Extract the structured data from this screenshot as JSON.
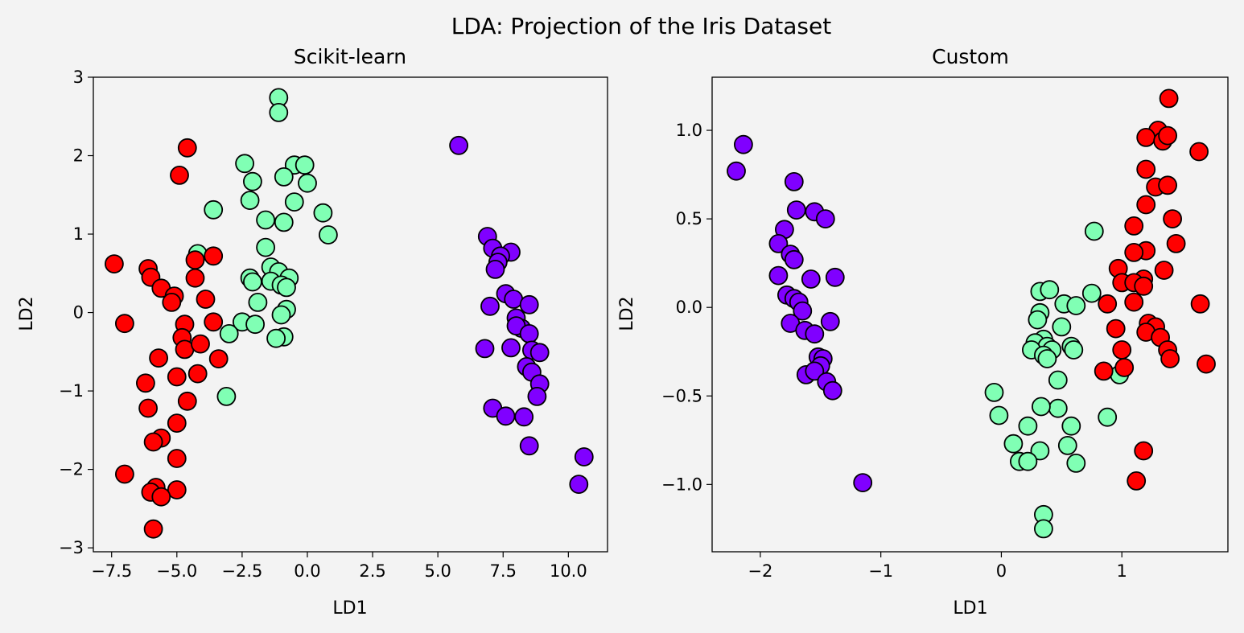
{
  "figure": {
    "suptitle": "LDA: Projection of the Iris Dataset",
    "background": "#f3f3f3",
    "marker_edge": "#000000"
  },
  "class_colors": [
    "#8000ff",
    "#80ffb4",
    "#ff0000"
  ],
  "chart_data": [
    {
      "type": "scatter",
      "title": "Scikit-learn",
      "xlabel": "LD1",
      "ylabel": "LD2",
      "xlim": [
        -8.2,
        11.5
      ],
      "ylim": [
        -3.05,
        3.0
      ],
      "xticks": [
        -7.5,
        -5.0,
        -2.5,
        0.0,
        2.5,
        5.0,
        7.5,
        10.0
      ],
      "xtick_labels": [
        "−7.5",
        "−5.0",
        "−2.5",
        "0.0",
        "2.5",
        "5.0",
        "7.5",
        "10.0"
      ],
      "yticks": [
        -3,
        -2,
        -1,
        0,
        1,
        2,
        3
      ],
      "ytick_labels": [
        "−3",
        "−2",
        "−1",
        "0",
        "1",
        "2",
        "3"
      ],
      "grid": false,
      "series": [
        {
          "class": 0,
          "points": [
            [
              5.8,
              2.13
            ],
            [
              6.9,
              0.97
            ],
            [
              7.1,
              0.82
            ],
            [
              7.8,
              0.77
            ],
            [
              7.4,
              0.72
            ],
            [
              7.3,
              0.64
            ],
            [
              7.2,
              0.55
            ],
            [
              7.6,
              0.24
            ],
            [
              7.9,
              0.17
            ],
            [
              8.5,
              0.1
            ],
            [
              7.0,
              0.08
            ],
            [
              8.0,
              -0.07
            ],
            [
              8.2,
              -0.2
            ],
            [
              8.0,
              -0.17
            ],
            [
              8.5,
              -0.27
            ],
            [
              6.8,
              -0.46
            ],
            [
              7.8,
              -0.45
            ],
            [
              8.6,
              -0.48
            ],
            [
              8.9,
              -0.51
            ],
            [
              8.4,
              -0.69
            ],
            [
              8.6,
              -0.76
            ],
            [
              8.9,
              -0.91
            ],
            [
              8.8,
              -1.07
            ],
            [
              7.1,
              -1.22
            ],
            [
              7.6,
              -1.32
            ],
            [
              8.3,
              -1.33
            ],
            [
              8.5,
              -1.7
            ],
            [
              10.6,
              -1.84
            ],
            [
              10.4,
              -2.19
            ]
          ]
        },
        {
          "class": 1,
          "points": [
            [
              -1.1,
              2.74
            ],
            [
              -1.1,
              2.55
            ],
            [
              -2.4,
              1.9
            ],
            [
              -0.5,
              1.88
            ],
            [
              -0.1,
              1.88
            ],
            [
              -2.1,
              1.67
            ],
            [
              -0.9,
              1.73
            ],
            [
              0.0,
              1.65
            ],
            [
              -2.2,
              1.43
            ],
            [
              -0.5,
              1.41
            ],
            [
              -3.6,
              1.31
            ],
            [
              -1.6,
              1.18
            ],
            [
              -0.9,
              1.15
            ],
            [
              0.6,
              1.27
            ],
            [
              0.8,
              0.99
            ],
            [
              -1.6,
              0.83
            ],
            [
              -4.2,
              0.75
            ],
            [
              -1.4,
              0.58
            ],
            [
              -1.1,
              0.52
            ],
            [
              -2.2,
              0.44
            ],
            [
              -2.1,
              0.39
            ],
            [
              -1.4,
              0.4
            ],
            [
              -0.7,
              0.44
            ],
            [
              -1.0,
              0.35
            ],
            [
              -0.8,
              0.32
            ],
            [
              -1.9,
              0.13
            ],
            [
              -2.5,
              -0.12
            ],
            [
              -2.0,
              -0.15
            ],
            [
              -0.8,
              0.04
            ],
            [
              -1.0,
              -0.03
            ],
            [
              -3.0,
              -0.27
            ],
            [
              -0.9,
              -0.31
            ],
            [
              -1.2,
              -0.33
            ],
            [
              -3.1,
              -1.07
            ]
          ]
        },
        {
          "class": 2,
          "points": [
            [
              -7.4,
              0.62
            ],
            [
              -4.6,
              2.1
            ],
            [
              -4.9,
              1.75
            ],
            [
              -7.0,
              -0.14
            ],
            [
              -6.1,
              0.56
            ],
            [
              -6.0,
              0.45
            ],
            [
              -5.6,
              0.31
            ],
            [
              -5.1,
              0.21
            ],
            [
              -5.2,
              0.13
            ],
            [
              -4.3,
              0.67
            ],
            [
              -4.3,
              0.44
            ],
            [
              -3.6,
              0.72
            ],
            [
              -3.9,
              0.17
            ],
            [
              -4.7,
              -0.15
            ],
            [
              -4.8,
              -0.32
            ],
            [
              -4.7,
              -0.47
            ],
            [
              -4.1,
              -0.4
            ],
            [
              -3.6,
              -0.12
            ],
            [
              -5.7,
              -0.58
            ],
            [
              -3.4,
              -0.59
            ],
            [
              -4.2,
              -0.78
            ],
            [
              -5.0,
              -0.82
            ],
            [
              -6.2,
              -0.9
            ],
            [
              -4.6,
              -1.13
            ],
            [
              -6.1,
              -1.22
            ],
            [
              -5.0,
              -1.41
            ],
            [
              -5.6,
              -1.6
            ],
            [
              -5.9,
              -1.65
            ],
            [
              -5.0,
              -1.86
            ],
            [
              -7.0,
              -2.06
            ],
            [
              -5.8,
              -2.23
            ],
            [
              -5.0,
              -2.26
            ],
            [
              -6.0,
              -2.29
            ],
            [
              -5.6,
              -2.35
            ],
            [
              -5.9,
              -2.76
            ]
          ]
        }
      ]
    },
    {
      "type": "scatter",
      "title": "Custom",
      "xlabel": "LD1",
      "ylabel": "LD2",
      "xlim": [
        -2.4,
        1.88
      ],
      "ylim": [
        -1.38,
        1.3
      ],
      "xticks": [
        -2,
        -1,
        0,
        1
      ],
      "xtick_labels": [
        "−2",
        "−1",
        "0",
        "1"
      ],
      "yticks": [
        -1.0,
        -0.5,
        0.0,
        0.5,
        1.0
      ],
      "ytick_labels": [
        "−1.0",
        "−0.5",
        "0.0",
        "0.5",
        "1.0"
      ],
      "grid": false,
      "series": [
        {
          "class": 0,
          "points": [
            [
              -2.14,
              0.92
            ],
            [
              -2.2,
              0.77
            ],
            [
              -1.72,
              0.71
            ],
            [
              -1.7,
              0.55
            ],
            [
              -1.55,
              0.54
            ],
            [
              -1.46,
              0.5
            ],
            [
              -1.8,
              0.44
            ],
            [
              -1.85,
              0.36
            ],
            [
              -1.75,
              0.3
            ],
            [
              -1.72,
              0.27
            ],
            [
              -1.85,
              0.18
            ],
            [
              -1.38,
              0.17
            ],
            [
              -1.58,
              0.16
            ],
            [
              -1.78,
              0.07
            ],
            [
              -1.72,
              0.05
            ],
            [
              -1.68,
              0.03
            ],
            [
              -1.65,
              -0.02
            ],
            [
              -1.42,
              -0.08
            ],
            [
              -1.75,
              -0.09
            ],
            [
              -1.63,
              -0.13
            ],
            [
              -1.55,
              -0.15
            ],
            [
              -1.52,
              -0.28
            ],
            [
              -1.48,
              -0.29
            ],
            [
              -1.5,
              -0.33
            ],
            [
              -1.62,
              -0.38
            ],
            [
              -1.55,
              -0.36
            ],
            [
              -1.45,
              -0.42
            ],
            [
              -1.4,
              -0.47
            ],
            [
              -1.15,
              -0.99
            ]
          ]
        },
        {
          "class": 1,
          "points": [
            [
              0.77,
              0.43
            ],
            [
              0.32,
              0.09
            ],
            [
              0.4,
              0.1
            ],
            [
              0.75,
              0.08
            ],
            [
              0.52,
              0.02
            ],
            [
              0.62,
              0.01
            ],
            [
              0.32,
              -0.03
            ],
            [
              0.3,
              -0.07
            ],
            [
              0.5,
              -0.11
            ],
            [
              0.35,
              -0.18
            ],
            [
              0.28,
              -0.2
            ],
            [
              0.38,
              -0.22
            ],
            [
              0.58,
              -0.22
            ],
            [
              0.25,
              -0.24
            ],
            [
              0.42,
              -0.24
            ],
            [
              0.6,
              -0.24
            ],
            [
              0.35,
              -0.27
            ],
            [
              0.38,
              -0.29
            ],
            [
              0.47,
              -0.41
            ],
            [
              0.98,
              -0.38
            ],
            [
              -0.06,
              -0.48
            ],
            [
              0.47,
              -0.57
            ],
            [
              0.33,
              -0.56
            ],
            [
              -0.02,
              -0.61
            ],
            [
              0.88,
              -0.62
            ],
            [
              0.22,
              -0.67
            ],
            [
              0.58,
              -0.67
            ],
            [
              0.1,
              -0.77
            ],
            [
              0.55,
              -0.78
            ],
            [
              0.32,
              -0.81
            ],
            [
              0.62,
              -0.88
            ],
            [
              0.15,
              -0.87
            ],
            [
              0.22,
              -0.87
            ],
            [
              0.35,
              -1.17
            ],
            [
              0.35,
              -1.25
            ]
          ]
        },
        {
          "class": 2,
          "points": [
            [
              1.39,
              1.18
            ],
            [
              1.3,
              1.0
            ],
            [
              1.2,
              0.96
            ],
            [
              1.34,
              0.94
            ],
            [
              1.38,
              0.97
            ],
            [
              1.64,
              0.88
            ],
            [
              1.2,
              0.78
            ],
            [
              1.28,
              0.68
            ],
            [
              1.38,
              0.69
            ],
            [
              1.2,
              0.58
            ],
            [
              1.42,
              0.5
            ],
            [
              1.1,
              0.46
            ],
            [
              1.45,
              0.36
            ],
            [
              1.2,
              0.32
            ],
            [
              1.1,
              0.31
            ],
            [
              0.97,
              0.22
            ],
            [
              1.35,
              0.21
            ],
            [
              1.18,
              0.16
            ],
            [
              1.0,
              0.14
            ],
            [
              1.1,
              0.14
            ],
            [
              1.18,
              0.12
            ],
            [
              1.1,
              0.03
            ],
            [
              1.65,
              0.02
            ],
            [
              0.88,
              0.02
            ],
            [
              1.22,
              -0.09
            ],
            [
              1.28,
              -0.11
            ],
            [
              1.2,
              -0.14
            ],
            [
              0.95,
              -0.12
            ],
            [
              1.32,
              -0.17
            ],
            [
              1.38,
              -0.24
            ],
            [
              1.0,
              -0.24
            ],
            [
              1.4,
              -0.29
            ],
            [
              1.7,
              -0.32
            ],
            [
              0.85,
              -0.36
            ],
            [
              1.02,
              -0.34
            ],
            [
              1.18,
              -0.81
            ],
            [
              1.12,
              -0.98
            ]
          ]
        }
      ]
    }
  ]
}
